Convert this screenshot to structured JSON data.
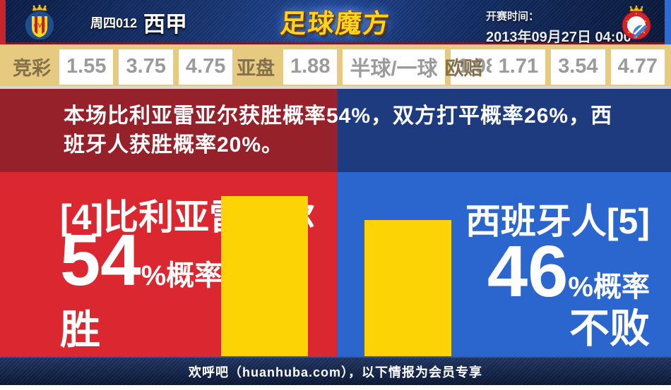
{
  "header": {
    "match_code": "周四012",
    "league": "西甲",
    "site_logo": "足球魔方",
    "kickoff_label": "开赛时间：",
    "kickoff_time": "2013年09月27日 04:00",
    "home_crest": "villarreal-crest",
    "away_crest": "espanyol-crest"
  },
  "odds_bar": {
    "groups": [
      {
        "label": "竞彩",
        "values": [
          "1.55",
          "3.75",
          "4.75"
        ]
      },
      {
        "label": "亚盘",
        "values": [
          "1.88",
          "半球/一球",
          "1.98"
        ]
      },
      {
        "label": "欧赔",
        "values": [
          "1.71",
          "3.54",
          "4.77"
        ]
      }
    ]
  },
  "summary": {
    "text": "本场比利亚雷亚尔获胜概率54%，双方打平概率26%，西班牙人获胜概率20%。"
  },
  "prediction": {
    "home": {
      "team": "[4]比利亚雷亚尔",
      "percent": "54",
      "percent_suffix": "%概率",
      "outcome": "胜",
      "probability": 54
    },
    "away": {
      "team": "西班牙人[5]",
      "percent": "46",
      "percent_suffix": "%概率",
      "outcome": "不败",
      "probability": 46
    },
    "draw_probability": 26,
    "bar_color": "#fcd405"
  },
  "footer": {
    "text": "欢呼吧（huanhuba.com），以下情报为会员专享"
  },
  "colors": {
    "header_navy": "#16336f",
    "odds_gold": "#e5ca80",
    "home_dark": "#97212a",
    "home_bright": "#da2730",
    "away_dark": "#1d3b7e",
    "away_bright": "#2b66cf",
    "bar_yellow": "#fcd405"
  }
}
